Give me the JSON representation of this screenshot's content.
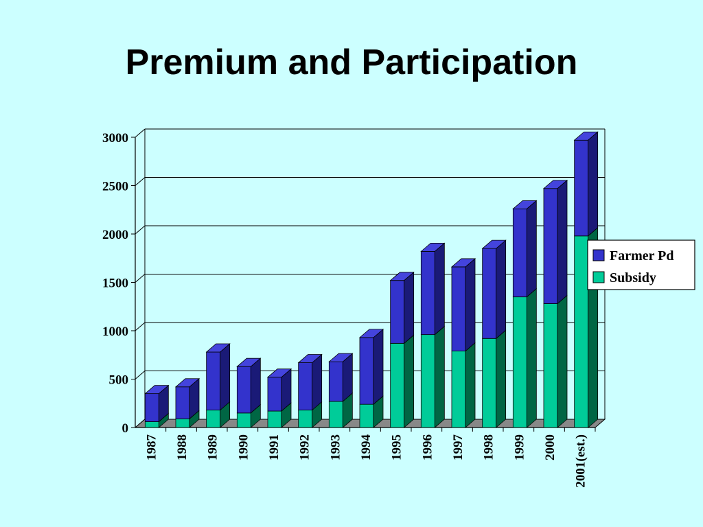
{
  "slide": {
    "title": "Premium and Participation",
    "background": "#ccffff"
  },
  "chart_data": {
    "type": "bar",
    "stacked": true,
    "three_d": true,
    "categories": [
      "1987",
      "1988",
      "1989",
      "1990",
      "1991",
      "1992",
      "1993",
      "1994",
      "1995",
      "1996",
      "1997",
      "1998",
      "1999",
      "2000",
      "2001(est.)"
    ],
    "series": [
      {
        "name": "Subsidy",
        "color": "#00cc99",
        "side_color": "#006644",
        "top_color": "#33ddaa",
        "values": [
          60,
          90,
          180,
          150,
          170,
          180,
          270,
          240,
          870,
          960,
          790,
          920,
          1350,
          1280,
          1980
        ]
      },
      {
        "name": "Farmer Pd",
        "color": "#3333cc",
        "side_color": "#1a1a77",
        "top_color": "#4444dd",
        "values": [
          290,
          330,
          600,
          480,
          350,
          490,
          410,
          690,
          650,
          860,
          870,
          930,
          910,
          1190,
          990
        ]
      }
    ],
    "y_ticks": [
      "0",
      "500",
      "1000",
      "1500",
      "2000",
      "2500",
      "3000"
    ],
    "ylim": [
      0,
      3000
    ],
    "grid": true,
    "legend_position": "right",
    "legend": [
      "Farmer Pd",
      "Subsidy"
    ]
  }
}
